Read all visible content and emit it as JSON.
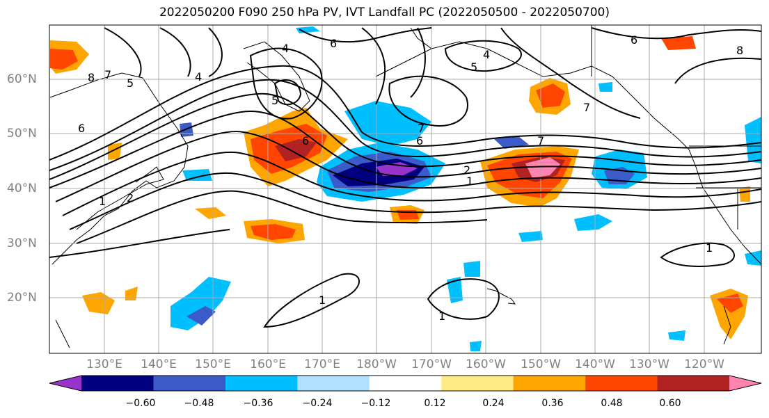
{
  "title": "2022050200 F090 250 hPa PV, IVT Landfall PC (2022050500 - 2022050700)",
  "lat_labels": [
    {
      "text": "60°N",
      "lat": 60
    },
    {
      "text": "50°N",
      "lat": 50
    },
    {
      "text": "40°N",
      "lat": 40
    },
    {
      "text": "30°N",
      "lat": 30
    },
    {
      "text": "20°N",
      "lat": 20
    }
  ],
  "lon_labels": [
    "130°E",
    "140°E",
    "150°E",
    "160°E",
    "170°E",
    "180°W",
    "170°W",
    "160°W",
    "150°W",
    "140°W",
    "130°W",
    "120°W"
  ],
  "colorbar": {
    "colors": [
      "#9933cc",
      "#000080",
      "#3b5cc8",
      "#00bfff",
      "#b0e0ff",
      "#ffffff",
      "#ffeb85",
      "#ffa500",
      "#ff4500",
      "#b22222",
      "#ff85b0"
    ],
    "ticks": [
      "−0.60",
      "−0.48",
      "−0.36",
      "−0.24",
      "−0.12",
      "0.12",
      "0.24",
      "0.36",
      "0.48",
      "0.60"
    ]
  },
  "contour_labels": [
    "8",
    "7",
    "5",
    "4",
    "6",
    "2",
    "1",
    "6",
    "4",
    "5",
    "6",
    "7",
    "6",
    "7",
    "5",
    "2",
    "1",
    "1",
    "1",
    "1",
    "6",
    "8",
    "7",
    "4"
  ]
}
